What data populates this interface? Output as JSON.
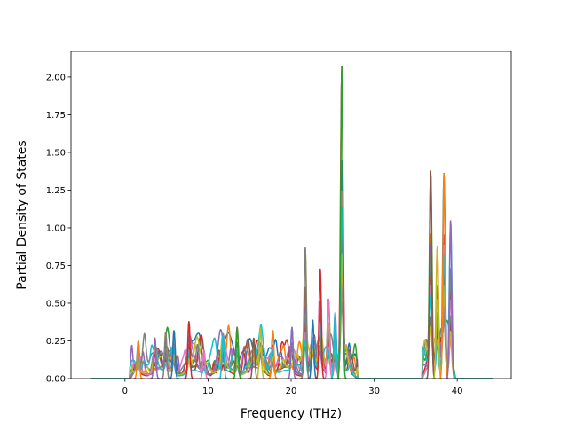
{
  "chart_data": {
    "type": "line",
    "title": "",
    "xlabel": "Frequency (THz)",
    "ylabel": "Partial Density of States",
    "xlim": [
      -6.5,
      46.5
    ],
    "ylim": [
      0,
      2.17
    ],
    "xticks": [
      0,
      10,
      20,
      30,
      40
    ],
    "xtick_labels": [
      "0",
      "10",
      "20",
      "30",
      "40"
    ],
    "yticks": [
      0.0,
      0.25,
      0.5,
      0.75,
      1.0,
      1.25,
      1.5,
      1.75,
      2.0
    ],
    "ytick_labels": [
      "0.00",
      "0.25",
      "0.50",
      "0.75",
      "1.00",
      "1.25",
      "1.50",
      "1.75",
      "2.00"
    ],
    "grid": false,
    "legend": "none",
    "x_range": [
      -4.2,
      44.3
    ],
    "series_colors": [
      "#1f77b4",
      "#ff7f0e",
      "#2ca02c",
      "#d62728",
      "#9467bd",
      "#8c564b",
      "#e377c2",
      "#7f7f7f",
      "#bcbd22",
      "#17becf"
    ],
    "peaks": [
      {
        "x": 1.6,
        "y": 0.25
      },
      {
        "x": 3.6,
        "y": 0.27
      },
      {
        "x": 4.9,
        "y": 0.31
      },
      {
        "x": 5.9,
        "y": 0.32
      },
      {
        "x": 7.7,
        "y": 0.38
      },
      {
        "x": 9.5,
        "y": 0.19
      },
      {
        "x": 11.8,
        "y": 0.3
      },
      {
        "x": 13.5,
        "y": 0.34
      },
      {
        "x": 15.5,
        "y": 0.27
      },
      {
        "x": 16.3,
        "y": 0.34
      },
      {
        "x": 17.8,
        "y": 0.32
      },
      {
        "x": 20.1,
        "y": 0.34
      },
      {
        "x": 21.7,
        "y": 0.87
      },
      {
        "x": 22.6,
        "y": 0.39
      },
      {
        "x": 23.5,
        "y": 0.73
      },
      {
        "x": 24.5,
        "y": 0.53
      },
      {
        "x": 25.3,
        "y": 0.44
      },
      {
        "x": 26.1,
        "y": 2.07
      },
      {
        "x": 36.8,
        "y": 1.38
      },
      {
        "x": 37.6,
        "y": 0.88
      },
      {
        "x": 38.4,
        "y": 1.36
      },
      {
        "x": 39.2,
        "y": 1.05
      }
    ]
  }
}
